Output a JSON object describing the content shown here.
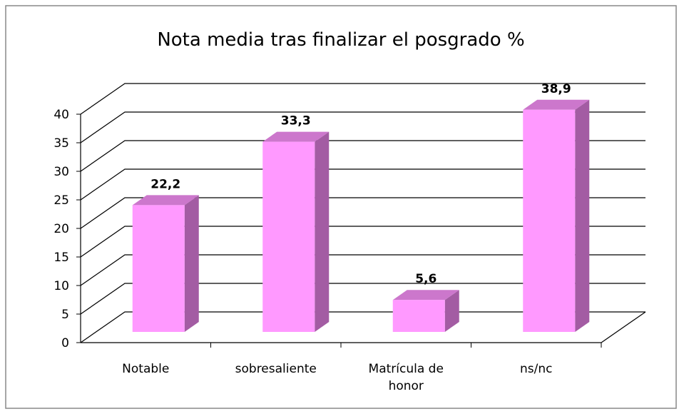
{
  "chart_data": {
    "type": "bar3d",
    "title": "Nota media tras finalizar el posgrado %",
    "categories": [
      "Notable",
      "sobresaliente",
      "Matrícula de honor",
      "ns/nc"
    ],
    "values": [
      22.2,
      33.3,
      5.6,
      38.9
    ],
    "value_labels": [
      "22,2",
      "33,3",
      "5,6",
      "38,9"
    ],
    "color": "#ff99ff",
    "ylim": [
      0,
      40
    ],
    "yticks": [
      0,
      5,
      10,
      15,
      20,
      25,
      30,
      35,
      40
    ],
    "grid": true
  }
}
